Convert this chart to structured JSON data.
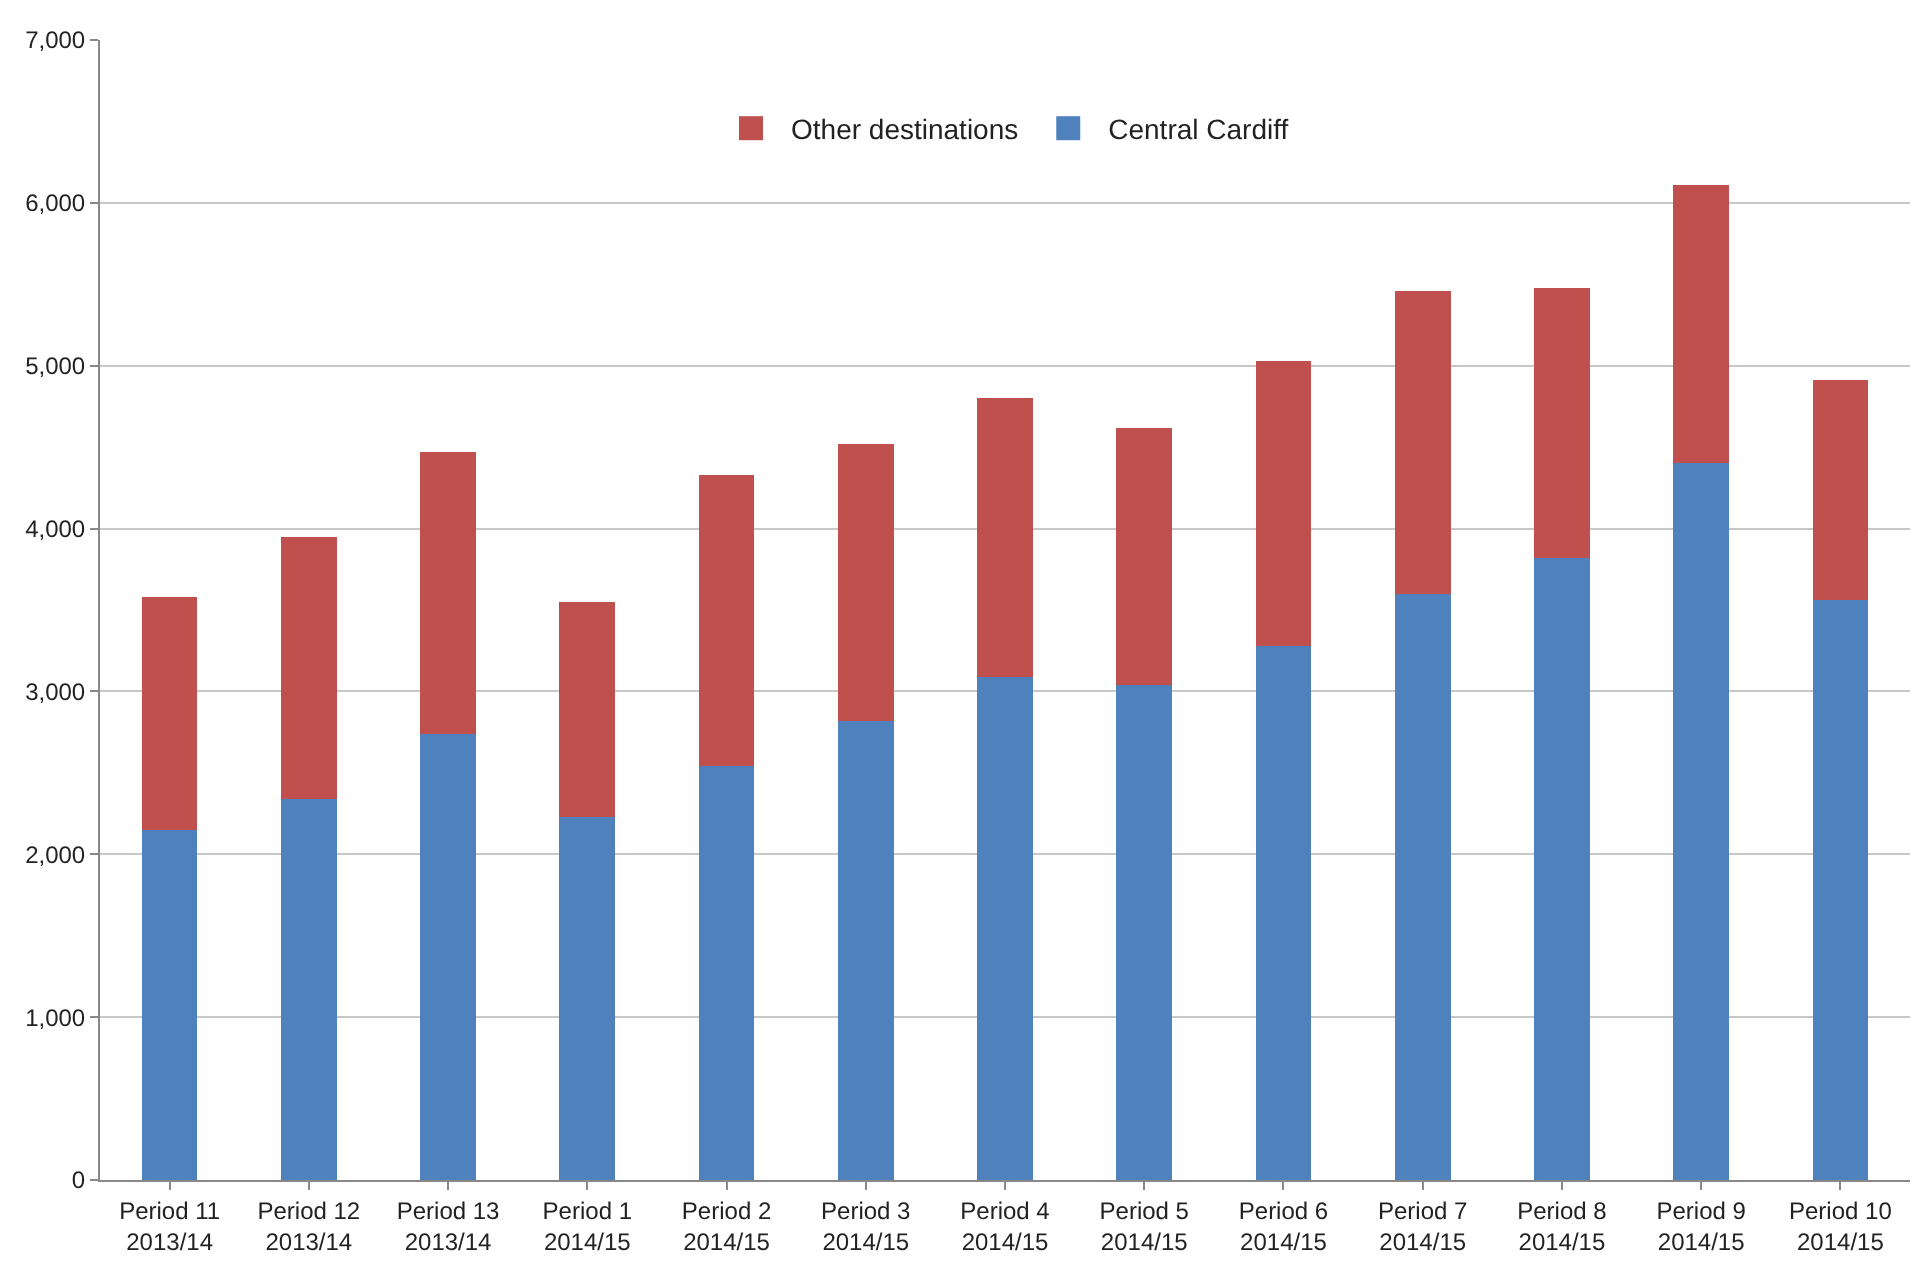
{
  "chart_data": {
    "type": "bar",
    "stacked": true,
    "categories": [
      "Period 11\n2013/14",
      "Period 12\n2013/14",
      "Period 13\n2013/14",
      "Period 1\n2014/15",
      "Period 2\n2014/15",
      "Period 3\n2014/15",
      "Period 4\n2014/15",
      "Period 5\n2014/15",
      "Period 6\n2014/15",
      "Period 7\n2014/15",
      "Period 8\n2014/15",
      "Period 9\n2014/15",
      "Period 10\n2014/15"
    ],
    "series": [
      {
        "name": "Central Cardiff",
        "color": "#4f81bd",
        "values": [
          2150,
          2340,
          2740,
          2230,
          2540,
          2820,
          3090,
          3040,
          3280,
          3600,
          3820,
          4400,
          3560
        ]
      },
      {
        "name": "Other destinations",
        "color": "#c0504d",
        "values": [
          1430,
          1610,
          1730,
          1320,
          1790,
          1700,
          1710,
          1580,
          1750,
          1860,
          1660,
          1710,
          1350
        ]
      }
    ],
    "ylim": [
      0,
      7000
    ],
    "yticks": [
      {
        "value": 0,
        "label": "0"
      },
      {
        "value": 1000,
        "label": "1,000"
      },
      {
        "value": 2000,
        "label": "2,000"
      },
      {
        "value": 3000,
        "label": "3,000"
      },
      {
        "value": 4000,
        "label": "4,000"
      },
      {
        "value": 5000,
        "label": "5,000"
      },
      {
        "value": 6000,
        "label": "6,000"
      },
      {
        "value": 7000,
        "label": "7,000"
      }
    ],
    "grid": "y",
    "legend": "top"
  }
}
